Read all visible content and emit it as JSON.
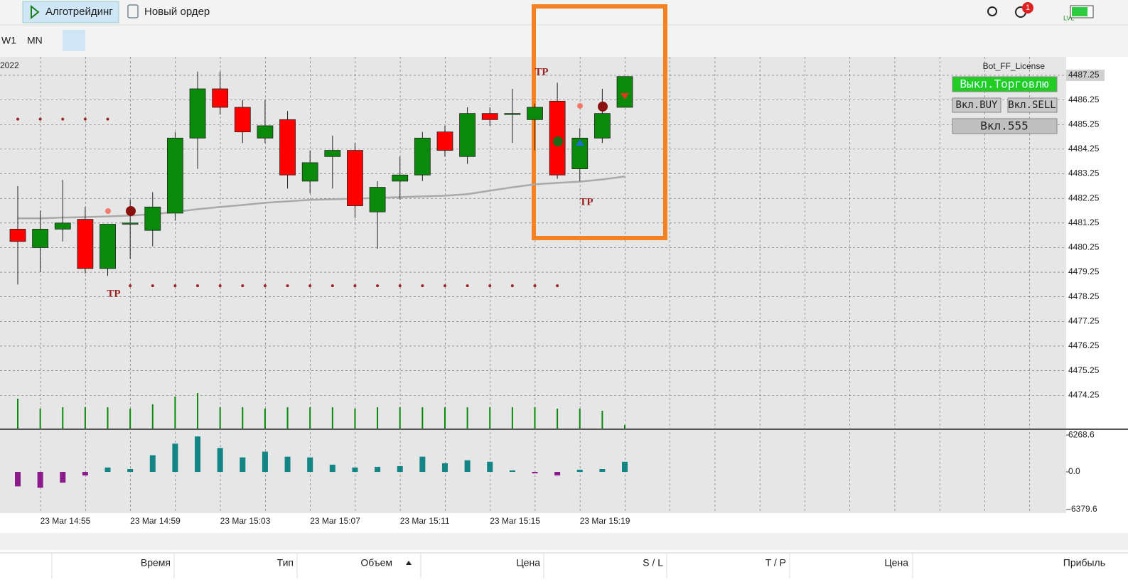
{
  "toolbar": {
    "algo": "Алготрейдинг",
    "new_order": "Новый ордер",
    "periods": [
      "W1",
      "MN"
    ],
    "badge": "1",
    "lvl": "LVL"
  },
  "chart_data": {
    "type": "candlestick",
    "year": "2022",
    "indicator": "Bot_FF_License",
    "categories": [
      null,
      "23 Mar 14:55",
      null,
      null,
      null,
      "23 Mar 14:59",
      null,
      null,
      null,
      "23 Mar 15:03",
      null,
      null,
      null,
      "23 Mar 15:07",
      null,
      null,
      null,
      "23 Mar 15:11",
      null,
      null,
      null,
      "23 Mar 15:15",
      null,
      null,
      null,
      "23 Mar 15:19",
      null,
      null
    ],
    "open": [
      4481.0,
      4480.25,
      4481.0,
      4481.4,
      4479.4,
      4481.2,
      4480.95,
      4481.65,
      4484.7,
      4486.7,
      4485.95,
      4484.7,
      4485.45,
      4482.95,
      4483.95,
      4484.2,
      4481.7,
      4482.95,
      4483.2,
      4484.95,
      4483.95,
      4485.7,
      4485.7,
      4485.45,
      4486.2,
      4483.45,
      4484.7,
      4485.95
    ],
    "high": [
      4482.75,
      4481.75,
      4483.0,
      4481.9,
      4481.2,
      4482.2,
      4482.5,
      4484.95,
      4487.4,
      4487.4,
      4486.25,
      4486.25,
      4485.8,
      4484.2,
      4484.8,
      4484.5,
      4482.95,
      4483.95,
      4484.95,
      4485.2,
      4485.95,
      4485.95,
      4486.7,
      4486.1,
      4486.95,
      4485.1,
      4486.7,
      4487.2
    ],
    "low": [
      4478.75,
      4479.25,
      4480.5,
      4479.2,
      4479.1,
      4479.8,
      4480.3,
      4481.35,
      4483.45,
      4485.65,
      4484.5,
      4484.5,
      4482.65,
      4482.45,
      4482.65,
      4481.45,
      4480.2,
      4482.2,
      4482.95,
      4483.95,
      4483.65,
      4485.2,
      4484.5,
      4484.2,
      4483.05,
      4482.95,
      4484.5,
      4485.95
    ],
    "close": [
      4480.5,
      4481.0,
      4481.25,
      4479.4,
      4481.2,
      4481.25,
      4481.9,
      4484.7,
      4486.7,
      4485.95,
      4484.95,
      4485.2,
      4483.2,
      4483.7,
      4484.2,
      4481.95,
      4482.7,
      4483.2,
      4484.7,
      4484.2,
      4485.7,
      4485.45,
      4485.7,
      4485.95,
      4483.2,
      4484.7,
      4485.7,
      4487.2
    ],
    "up_color": "#0a8a0a",
    "down_color": "#ff0000",
    "ma": [
      4481.44,
      4481.44,
      4481.47,
      4481.49,
      4481.52,
      4481.55,
      4481.61,
      4481.7,
      4481.81,
      4481.9,
      4481.98,
      4482.07,
      4482.13,
      4482.19,
      4482.21,
      4482.24,
      4482.27,
      4482.3,
      4482.33,
      4482.36,
      4482.42,
      4482.56,
      4482.7,
      4482.82,
      4482.88,
      4482.93,
      4483.02,
      4483.14
    ],
    "ma_color": "#a9a9a9",
    "volumes": [
      42,
      28,
      30,
      30,
      30,
      28,
      34,
      45,
      50,
      30,
      30,
      28,
      30,
      30,
      30,
      28,
      30,
      30,
      30,
      30,
      30,
      30,
      30,
      30,
      28,
      28,
      25,
      5
    ],
    "tp_levels": [
      {
        "price": 4485.47,
        "start": 0,
        "end": 4
      },
      {
        "price": 4478.7,
        "start": 5,
        "end": 24
      }
    ],
    "tp_labels": [
      "TP",
      "TP",
      "TP"
    ],
    "ylim": [
      4472.9,
      4488.0
    ],
    "yticks": [
      4487.25,
      4486.25,
      4485.25,
      4484.25,
      4483.25,
      4482.25,
      4481.25,
      4480.25,
      4479.25,
      4478.25,
      4477.25,
      4476.25,
      4475.25,
      4474.25
    ],
    "oscillator": {
      "values": [
        -2460,
        -2700,
        -1840,
        -610,
        740,
        490,
        2830,
        4800,
        6020,
        4060,
        2460,
        3440,
        2580,
        2460,
        1230,
        740,
        860,
        980,
        2580,
        1470,
        1970,
        1720,
        250,
        -250,
        -610,
        370,
        490,
        1720
      ],
      "positive_color": "#138585",
      "negative_color": "#8b1a8b",
      "ylim": [
        -7000,
        7130
      ],
      "yticks": [
        6268.6,
        {
          "value": 0,
          "label": "0.0"
        },
        -6379.6
      ]
    }
  },
  "panel_buttons": {
    "trade": "Выкл.Торговлю",
    "buy": "Вкл.BUY",
    "sell": "Вкл.SELL",
    "n555": "Вкл.555"
  },
  "table": {
    "headers": [
      "Время",
      "Тип",
      "Объем",
      "Цена",
      "S / L",
      "T / P",
      "Цена",
      "Прибыль"
    ]
  }
}
